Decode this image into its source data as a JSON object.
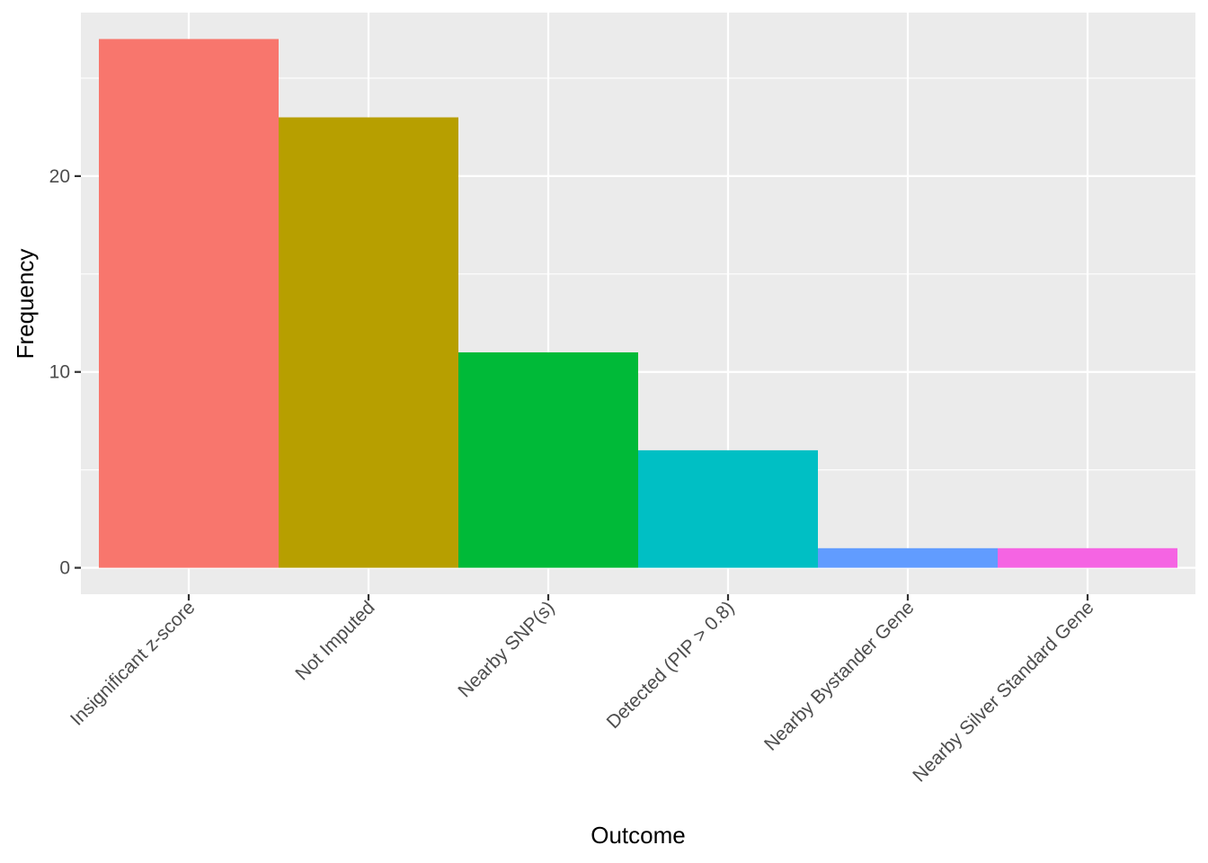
{
  "chart_data": {
    "type": "bar",
    "title": "",
    "xlabel": "Outcome",
    "ylabel": "Frequency",
    "categories": [
      "Insignificant z-score",
      "Not Imputed",
      "Nearby SNP(s)",
      "Detected (PIP > 0.8)",
      "Nearby Bystander Gene",
      "Nearby Silver Standard Gene"
    ],
    "values": [
      27,
      23,
      11,
      6,
      1,
      1
    ],
    "colors": [
      "#F8766D",
      "#B79F00",
      "#00BA38",
      "#00BFC4",
      "#619CFF",
      "#F564E3"
    ],
    "ylim": [
      -1.35,
      28.35
    ],
    "yticks": [
      0,
      10,
      20
    ],
    "grid": true,
    "legend": "none",
    "panel_background": "#EBEBEB",
    "grid_color": "#FFFFFF"
  }
}
